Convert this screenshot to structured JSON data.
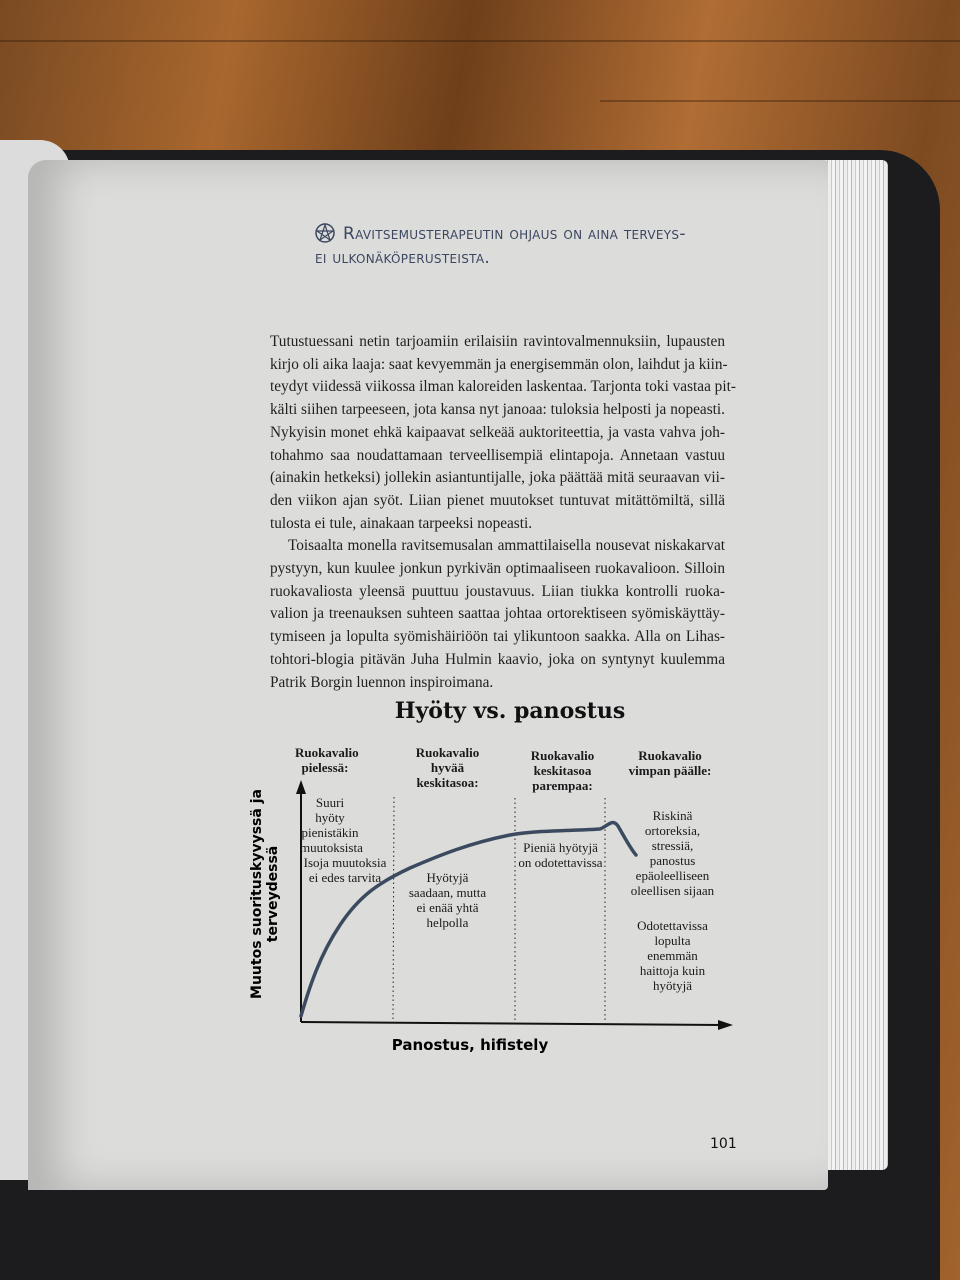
{
  "heading": [
    "Ravitsemusterapeutin ohjaus on aina terveys-",
    "ei ulkonäköperusteista."
  ],
  "heading_icon": "pentagram-badge-icon",
  "paragraphs": [
    [
      "Tutustuessani netin tarjoamiin erilaisiin ravintovalmennuksiin, lupausten",
      "kirjo oli aika laaja: saat kevyemmän ja energisemmän olon, laihdut ja kiin-",
      "teydyt viidessä viikossa ilman kaloreiden laskentaa. Tarjonta toki vastaa pit-",
      "kälti siihen tarpeeseen, jota kansa nyt janoaa: tuloksia helposti ja nopeasti.",
      "Nykyisin monet ehkä kaipaavat selkeää auktoriteettia, ja vasta vahva joh-",
      "tohahmo saa noudattamaan terveellisempiä elintapoja. Annetaan vastuu",
      "(ainakin hetkeksi) jollekin asiantuntijalle, joka päättää mitä seuraavan vii-",
      "den viikon ajan syöt. Liian pienet muutokset tuntuvat mitättömiltä, sillä",
      "tulosta ei tule, ainakaan tarpeeksi nopeasti."
    ],
    [
      "Toisaalta monella ravitsemusalan ammattilaisella nousevat niskakarvat",
      "pystyyn, kun kuulee jonkun pyrkivän optimaaliseen ruokavalioon. Silloin",
      "ruokavaliosta yleensä puuttuu joustavuus. Liian tiukka kontrolli ruoka-",
      "valion ja treenauksen suhteen saattaa johtaa ortorektiseen syömiskäyttäy-",
      "tymiseen ja lopulta syömishäiriöön tai ylikuntoon saakka. Alla on Lihas-",
      "tohtori-blogia pitävän Juha Hulmin kaavio, joka on syntynyt kuulemma",
      "Patrik Borgin luennon inspiroimana."
    ]
  ],
  "chart_data": {
    "type": "line",
    "title": "Hyöty vs. panostus",
    "xlabel": "Panostus, hifistely",
    "ylabel": "Muutos suorituskyvyssä ja terveydessä",
    "curve_color": "#3b4a5e",
    "zones": [
      {
        "header": [
          "Ruokavalio",
          "pielessä:"
        ],
        "notes": [
          [
            "Suuri hyöty",
            "pienistäkin",
            "muutoksista"
          ],
          [
            "Isoja muutoksia",
            "ei edes tarvita"
          ]
        ]
      },
      {
        "header": [
          "Ruokavalio",
          "hyvää",
          "keskitasoa:"
        ],
        "notes": [
          [
            "Hyötyjä",
            "saadaan, mutta",
            "ei enää yhtä",
            "helpolla"
          ]
        ]
      },
      {
        "header": [
          "Ruokavalio",
          "keskitasoa",
          "parempaa:"
        ],
        "notes": [
          [
            "Pieniä hyötyjä",
            "on odotettavissa"
          ]
        ]
      },
      {
        "header": [
          "Ruokavalio",
          "vimpan päälle:"
        ],
        "notes": [
          [
            "Riskinä",
            "ortoreksia,",
            "stressiä,",
            "panostus",
            "epäoleelliseen",
            "oleellisen sijaan"
          ],
          [
            "Odotettavissa",
            "lopulta",
            "enemmän",
            "haittoja kuin",
            "hyötyjä"
          ]
        ]
      }
    ]
  },
  "page_number": "101"
}
